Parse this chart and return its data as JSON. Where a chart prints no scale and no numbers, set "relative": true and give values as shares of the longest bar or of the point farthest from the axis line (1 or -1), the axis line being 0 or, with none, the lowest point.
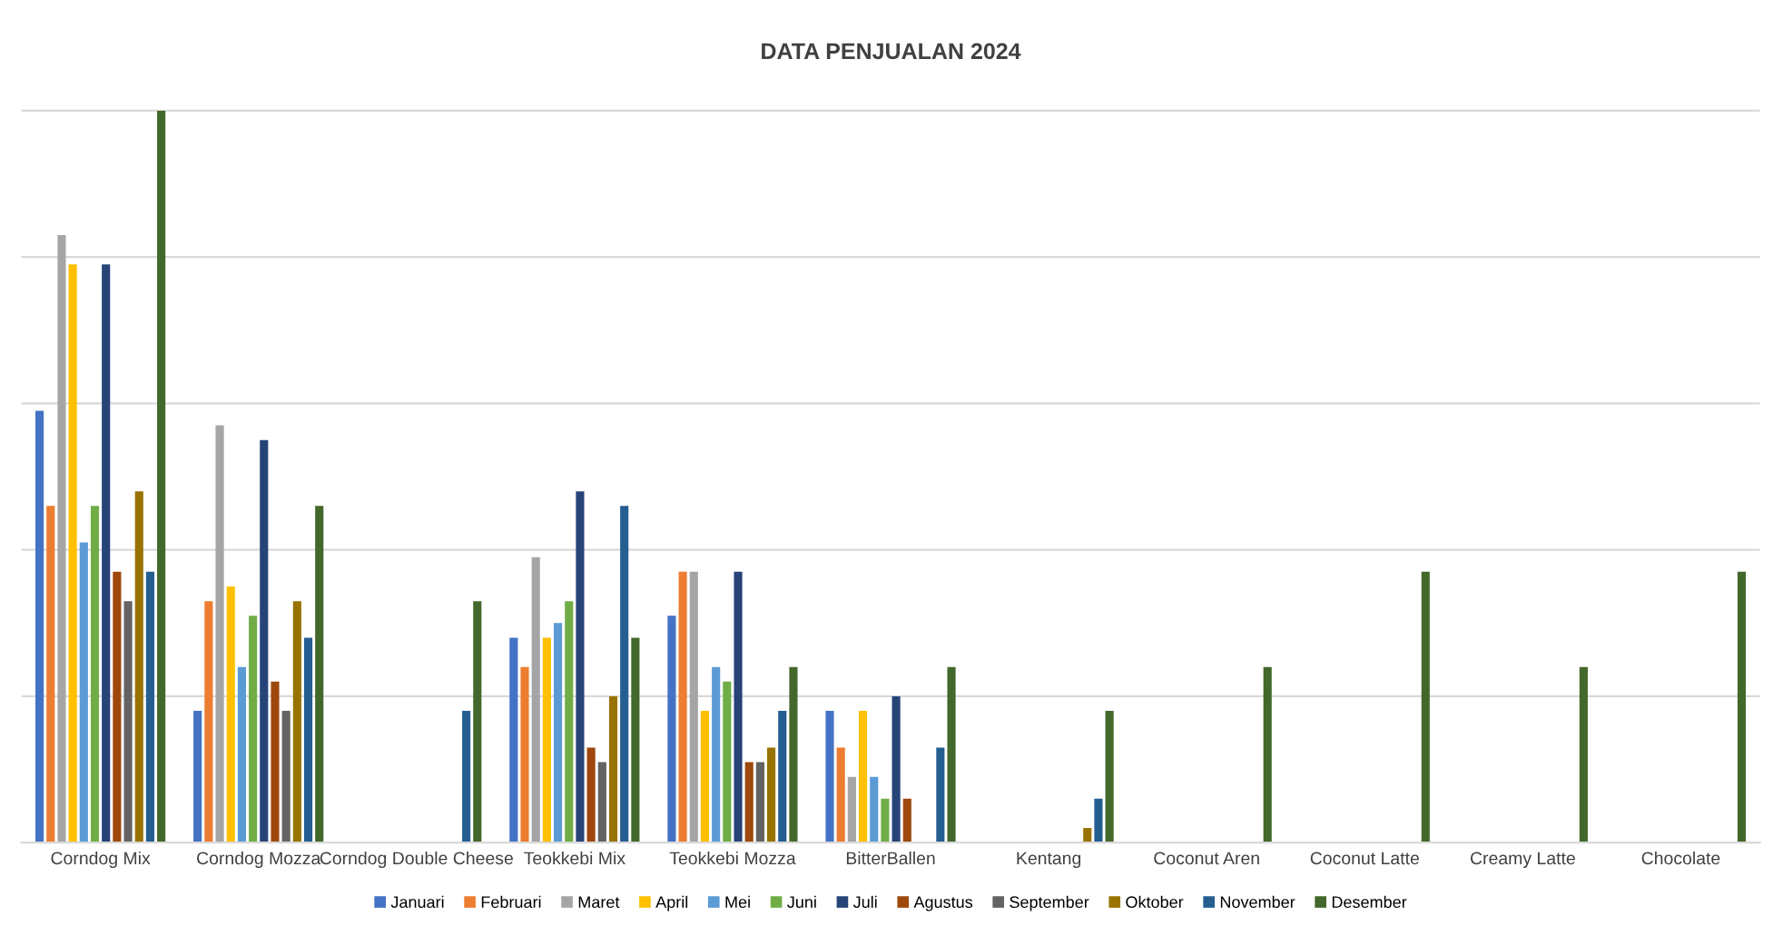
{
  "chart_data": {
    "type": "bar",
    "title": "DATA PENJUALAN 2024",
    "relative": true,
    "grid": "y",
    "legend": "bottom",
    "categories": [
      "Corndog Mix",
      "Corndog Mozza",
      "Corndog Double Cheese",
      "Teokkebi Mix",
      "Teokkebi Mozza",
      "BitterBallen",
      "Kentang",
      "Coconut Aren",
      "Coconut Latte",
      "Creamy Latte",
      "Chocolate"
    ],
    "series": [
      {
        "name": "Januari",
        "color": "#4472c4",
        "values": [
          0.59,
          0.18,
          0,
          0.28,
          0.31,
          0.18,
          0,
          0,
          0,
          0,
          0
        ]
      },
      {
        "name": "Februari",
        "color": "#ed7d31",
        "values": [
          0.46,
          0.33,
          0,
          0.24,
          0.37,
          0.13,
          0,
          0,
          0,
          0,
          0
        ]
      },
      {
        "name": "Maret",
        "color": "#a5a5a5",
        "values": [
          0.83,
          0.57,
          0,
          0.39,
          0.37,
          0.09,
          0,
          0,
          0,
          0,
          0
        ]
      },
      {
        "name": "April",
        "color": "#ffc000",
        "values": [
          0.79,
          0.35,
          0,
          0.28,
          0.18,
          0.18,
          0,
          0,
          0,
          0,
          0
        ]
      },
      {
        "name": "Mei",
        "color": "#5b9bd5",
        "values": [
          0.41,
          0.24,
          0,
          0.3,
          0.24,
          0.09,
          0,
          0,
          0,
          0,
          0
        ]
      },
      {
        "name": "Juni",
        "color": "#70ad47",
        "values": [
          0.46,
          0.31,
          0,
          0.33,
          0.22,
          0.06,
          0,
          0,
          0,
          0,
          0
        ]
      },
      {
        "name": "Juli",
        "color": "#264478",
        "values": [
          0.79,
          0.55,
          0,
          0.48,
          0.37,
          0.2,
          0,
          0,
          0,
          0,
          0
        ]
      },
      {
        "name": "Agustus",
        "color": "#9e480e",
        "values": [
          0.37,
          0.22,
          0,
          0.13,
          0.11,
          0.06,
          0,
          0,
          0,
          0,
          0
        ]
      },
      {
        "name": "September",
        "color": "#636363",
        "values": [
          0.33,
          0.18,
          0,
          0.11,
          0.11,
          0,
          0,
          0,
          0,
          0,
          0
        ]
      },
      {
        "name": "Oktober",
        "color": "#997300",
        "values": [
          0.48,
          0.33,
          0,
          0.2,
          0.13,
          0,
          0.02,
          0,
          0,
          0,
          0
        ]
      },
      {
        "name": "November",
        "color": "#255e91",
        "values": [
          0.37,
          0.28,
          0.18,
          0.46,
          0.18,
          0.13,
          0.06,
          0,
          0,
          0,
          0
        ]
      },
      {
        "name": "Desember",
        "color": "#43682b",
        "values": [
          1,
          0.46,
          0.33,
          0.28,
          0.24,
          0.24,
          0.18,
          0.24,
          0.37,
          0.24,
          0.37
        ]
      }
    ]
  }
}
